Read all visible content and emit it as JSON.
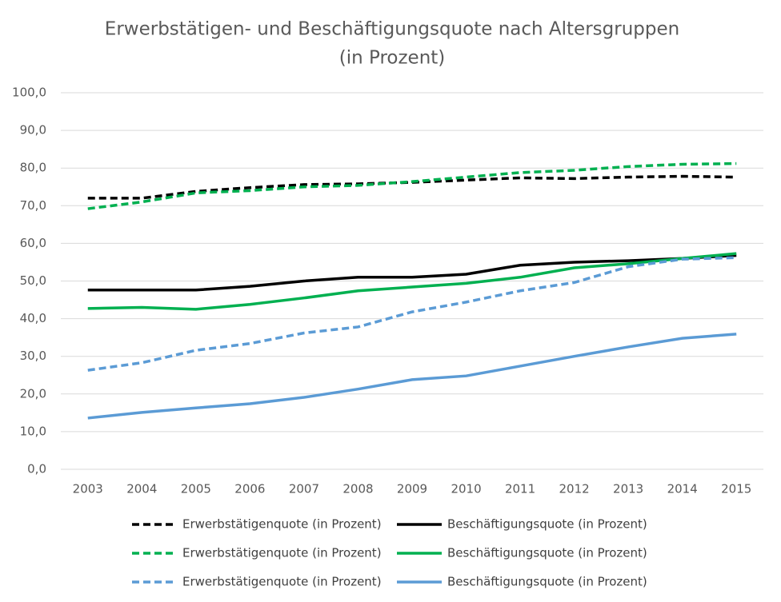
{
  "chart_data": {
    "type": "line",
    "title": "Erwerbstätigen- und Beschäftigungsquote nach Altersgruppen",
    "subtitle": "(in Prozent)",
    "categories": [
      "2003",
      "2004",
      "2005",
      "2006",
      "2007",
      "2008",
      "2009",
      "2010",
      "2011",
      "2012",
      "2013",
      "2014",
      "2015"
    ],
    "series": [
      {
        "name": "Erwerbstätigenquote (in Prozent)",
        "color": "#000000",
        "style": "dashed",
        "values": [
          72,
          72,
          73.8,
          74.8,
          75.6,
          75.8,
          76.2,
          76.8,
          77.4,
          77.2,
          77.6,
          77.8,
          77.6
        ]
      },
      {
        "name": "Beschäftigungsquote (in Prozent)",
        "color": "#000000",
        "style": "solid",
        "values": [
          47.6,
          47.6,
          47.6,
          48.6,
          50,
          51,
          51,
          51.8,
          54.2,
          55,
          55.4,
          56,
          56.8
        ]
      },
      {
        "name": "Erwerbstätigenquote (in Prozent)",
        "color": "#00b050",
        "style": "dashed",
        "values": [
          69.2,
          71,
          73.4,
          74,
          75,
          75.4,
          76.4,
          77.6,
          78.8,
          79.4,
          80.4,
          81,
          81.2
        ]
      },
      {
        "name": "Beschäftigungsquote (in Prozent)",
        "color": "#00b050",
        "style": "solid",
        "values": [
          42.7,
          43,
          42.5,
          43.8,
          45.5,
          47.4,
          48.4,
          49.4,
          51,
          53.5,
          54.6,
          56,
          57.3
        ]
      },
      {
        "name": "Erwerbstätigenquote (in Prozent)",
        "color": "#5b9bd5",
        "style": "dashed",
        "values": [
          26.3,
          28.3,
          31.6,
          33.4,
          36.2,
          37.8,
          41.8,
          44.4,
          47.4,
          49.6,
          53.8,
          55.8,
          56.2
        ]
      },
      {
        "name": "Beschäftigungsquote (in Prozent)",
        "color": "#5b9bd5",
        "style": "solid",
        "values": [
          13.6,
          15.1,
          16.3,
          17.4,
          19.1,
          21.3,
          23.8,
          24.8,
          27.4,
          30,
          32.5,
          34.8,
          35.9
        ]
      }
    ],
    "ylim": [
      0,
      100
    ],
    "yticks": [
      {
        "value": 0,
        "label": "0,0"
      },
      {
        "value": 10,
        "label": "10,0"
      },
      {
        "value": 20,
        "label": "20,0"
      },
      {
        "value": 30,
        "label": "30,0"
      },
      {
        "value": 40,
        "label": "40,0"
      },
      {
        "value": 50,
        "label": "50,0"
      },
      {
        "value": 60,
        "label": "60,0"
      },
      {
        "value": 70,
        "label": "70,0"
      },
      {
        "value": 80,
        "label": "80,0"
      },
      {
        "value": 90,
        "label": "90,0"
      },
      {
        "value": 100,
        "label": "100,0"
      }
    ],
    "grid": true
  }
}
